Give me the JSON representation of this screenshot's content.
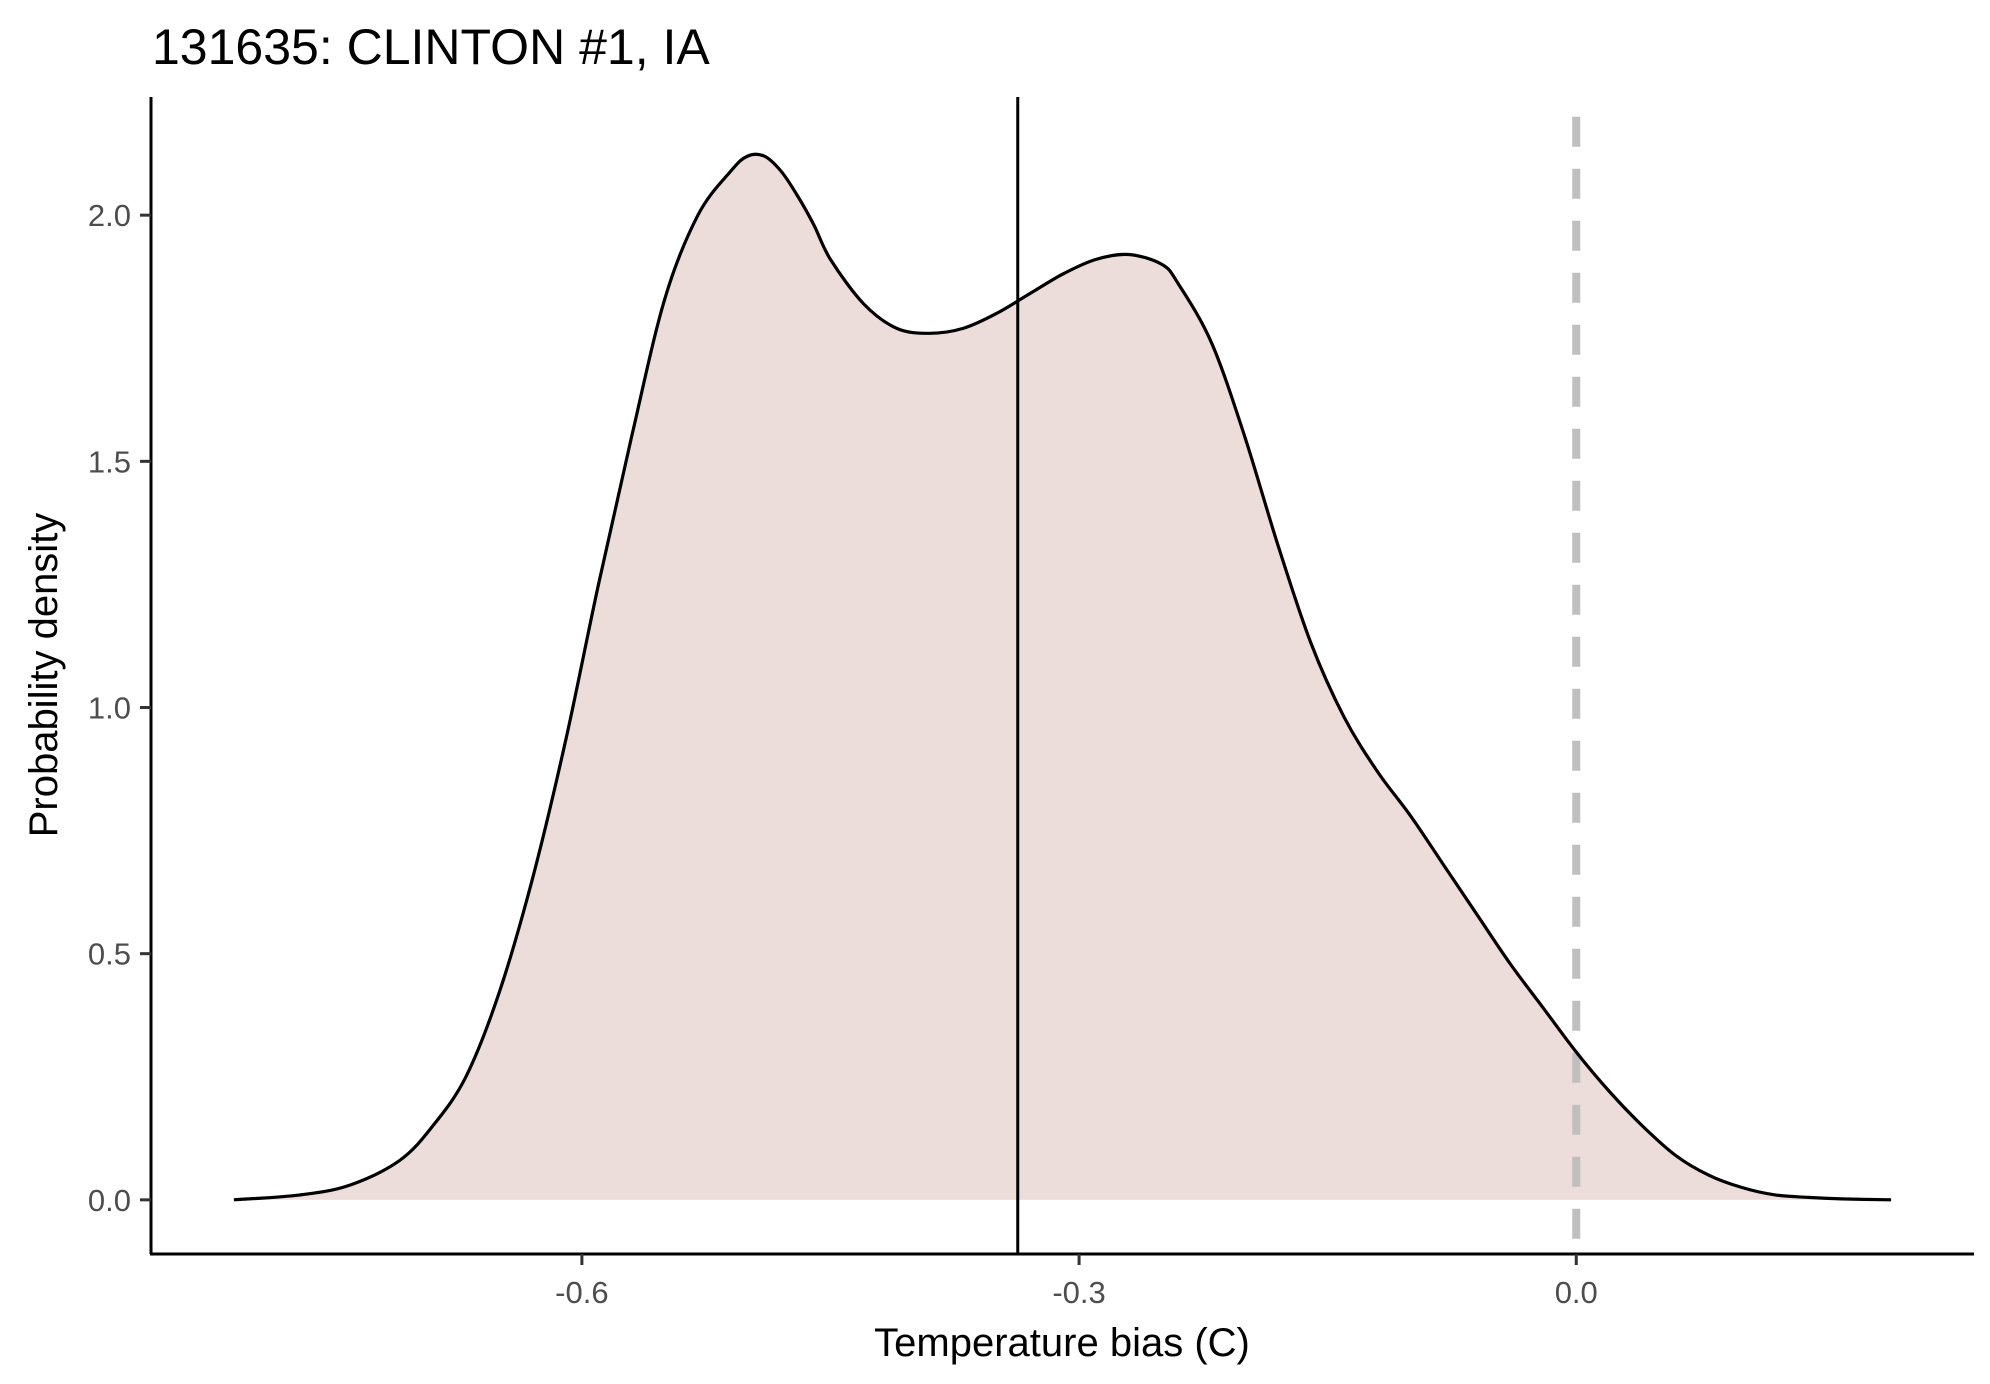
{
  "chart_data": {
    "type": "area",
    "title": "131635: CLINTON #1, IA",
    "xlabel": "Temperature bias (C)",
    "ylabel": "Probability density",
    "xlim": [
      -0.86,
      0.24
    ],
    "ylim": [
      -0.11,
      2.24
    ],
    "x_ticks": [
      -0.6,
      -0.3,
      0.0
    ],
    "x_tick_labels": [
      "-0.6",
      "-0.3",
      "0.0"
    ],
    "y_ticks": [
      0.0,
      0.5,
      1.0,
      1.5,
      2.0
    ],
    "y_tick_labels": [
      "0.0",
      "0.5",
      "1.0",
      "1.5",
      "2.0"
    ],
    "grid": false,
    "legend": "none",
    "fill_color": "#ecdcda",
    "line_color": "#000000",
    "reference_color": "#bfbfbf",
    "mean_line_x": -0.337,
    "zero_line_x": 0.0,
    "series": [
      {
        "x": [
          -0.81,
          -0.77,
          -0.74,
          -0.71,
          -0.69,
          -0.67,
          -0.65,
          -0.63,
          -0.61,
          -0.59,
          -0.57,
          -0.55,
          -0.53,
          -0.51,
          -0.5,
          -0.49,
          -0.48,
          -0.47,
          -0.46,
          -0.45,
          -0.43,
          -0.41,
          -0.39,
          -0.37,
          -0.35,
          -0.33,
          -0.31,
          -0.29,
          -0.27,
          -0.25,
          -0.24,
          -0.22,
          -0.2,
          -0.18,
          -0.16,
          -0.14,
          -0.12,
          -0.1,
          -0.08,
          -0.06,
          -0.04,
          -0.02,
          0.0,
          0.02,
          0.04,
          0.06,
          0.08,
          0.1,
          0.12,
          0.14,
          0.16,
          0.19
        ],
        "y": [
          0.0,
          0.01,
          0.03,
          0.08,
          0.15,
          0.25,
          0.42,
          0.65,
          0.93,
          1.25,
          1.55,
          1.83,
          2.0,
          2.09,
          2.12,
          2.12,
          2.09,
          2.04,
          1.98,
          1.91,
          1.82,
          1.77,
          1.76,
          1.77,
          1.8,
          1.84,
          1.88,
          1.91,
          1.92,
          1.9,
          1.86,
          1.74,
          1.55,
          1.33,
          1.13,
          0.98,
          0.87,
          0.78,
          0.68,
          0.58,
          0.48,
          0.39,
          0.3,
          0.22,
          0.15,
          0.09,
          0.05,
          0.025,
          0.01,
          0.005,
          0.002,
          0.0
        ]
      }
    ]
  }
}
